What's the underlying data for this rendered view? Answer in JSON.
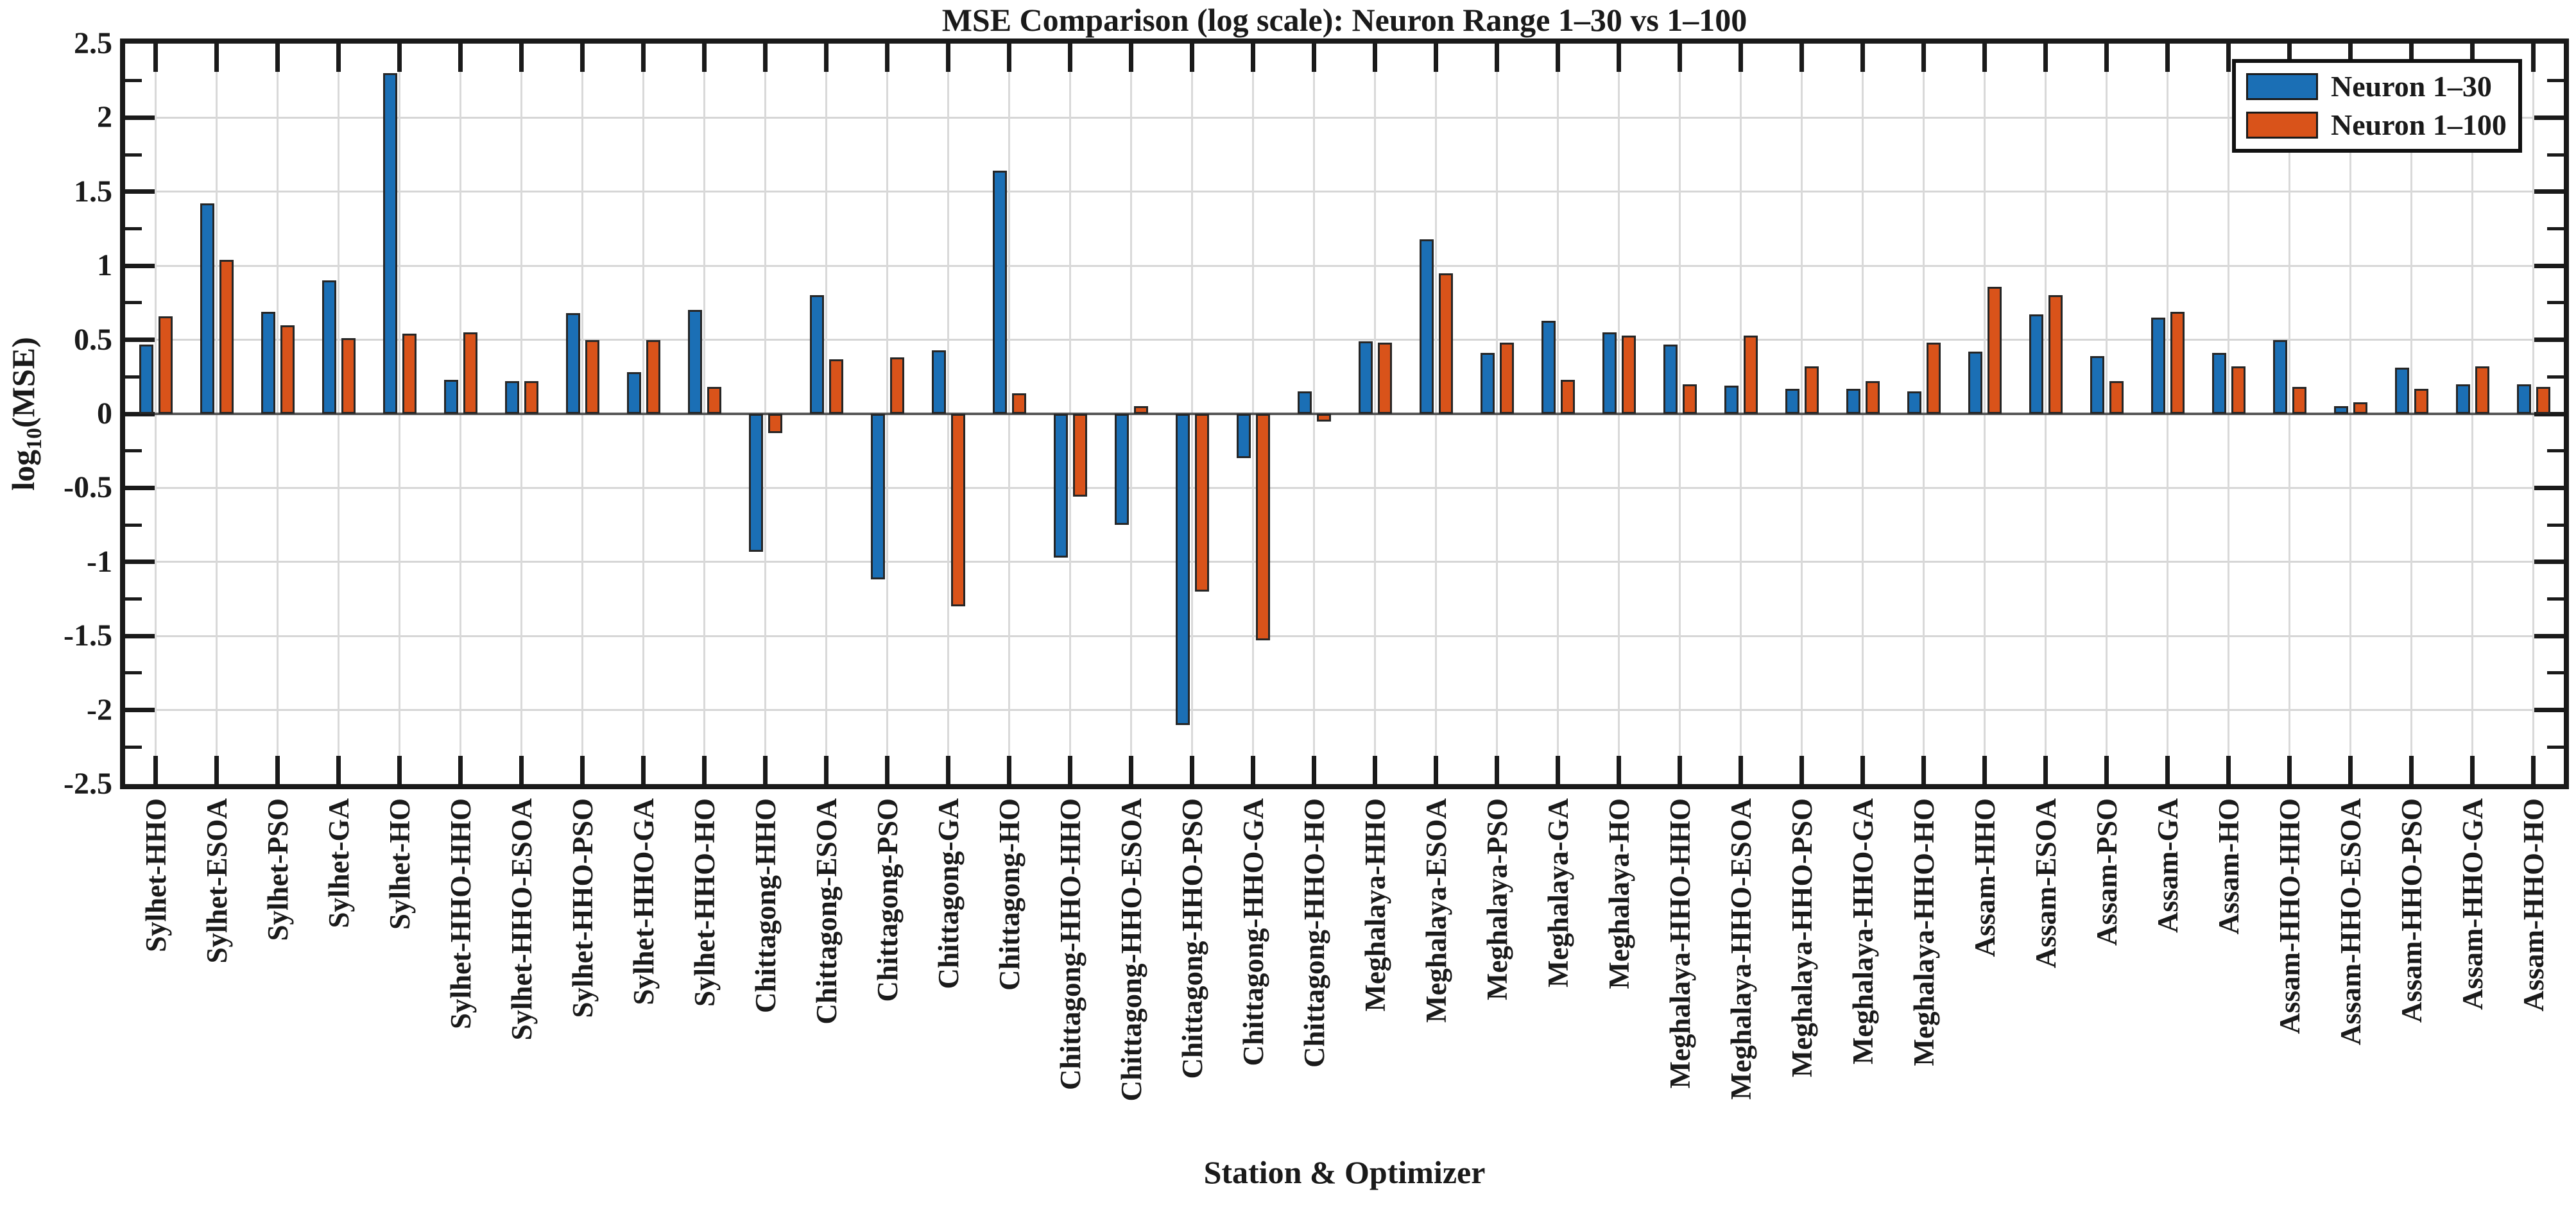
{
  "title": "MSE Comparison (log scale): Neuron Range 1–30 vs 1–100",
  "chart_data": {
    "type": "bar",
    "title": "MSE Comparison (log scale): Neuron Range 1–30 vs 1–100",
    "xlabel": "Station & Optimizer",
    "ylabel": "log10(MSE)",
    "ylabel_parts": {
      "pre": "log",
      "sub": "10",
      "post": "(MSE)"
    },
    "ylim": [
      -2.5,
      2.5
    ],
    "ytick_step": 0.5,
    "ytick_labels": [
      "2.5",
      "2",
      "1.5",
      "1",
      "0.5",
      "0",
      "-0.5",
      "-1",
      "-1.5",
      "-2",
      "-2.5"
    ],
    "grid": true,
    "legend_position": "top-right",
    "categories": [
      "Sylhet-HHO",
      "Sylhet-ESOA",
      "Sylhet-PSO",
      "Sylhet-GA",
      "Sylhet-HO",
      "Sylhet-HHO-HHO",
      "Sylhet-HHO-ESOA",
      "Sylhet-HHO-PSO",
      "Sylhet-HHO-GA",
      "Sylhet-HHO-HO",
      "Chittagong-HHO",
      "Chittagong-ESOA",
      "Chittagong-PSO",
      "Chittagong-GA",
      "Chittagong-HO",
      "Chittagong-HHO-HHO",
      "Chittagong-HHO-ESOA",
      "Chittagong-HHO-PSO",
      "Chittagong-HHO-GA",
      "Chittagong-HHO-HO",
      "Meghalaya-HHO",
      "Meghalaya-ESOA",
      "Meghalaya-PSO",
      "Meghalaya-GA",
      "Meghalaya-HO",
      "Meghalaya-HHO-HHO",
      "Meghalaya-HHO-ESOA",
      "Meghalaya-HHO-PSO",
      "Meghalaya-HHO-GA",
      "Meghalaya-HHO-HO",
      "Assam-HHO",
      "Assam-ESOA",
      "Assam-PSO",
      "Assam-GA",
      "Assam-HO",
      "Assam-HHO-HHO",
      "Assam-HHO-ESOA",
      "Assam-HHO-PSO",
      "Assam-HHO-GA",
      "Assam-HHO-HO"
    ],
    "series": [
      {
        "name": "Neuron 1–30",
        "color": "#1b6fb5",
        "values": [
          0.47,
          1.42,
          0.69,
          0.9,
          2.3,
          0.23,
          0.22,
          0.68,
          0.28,
          0.7,
          -0.93,
          0.8,
          -1.12,
          0.43,
          1.64,
          -0.97,
          -0.75,
          -2.1,
          -0.3,
          0.15,
          0.49,
          1.18,
          0.41,
          0.63,
          0.55,
          0.47,
          0.19,
          0.17,
          0.17,
          0.15,
          0.42,
          0.67,
          0.39,
          0.65,
          0.41,
          0.5,
          0.05,
          0.31,
          0.2,
          0.2
        ]
      },
      {
        "name": "Neuron 1–100",
        "color": "#d9531a",
        "values": [
          0.66,
          1.04,
          0.6,
          0.51,
          0.54,
          0.55,
          0.22,
          0.5,
          0.5,
          0.18,
          -0.13,
          0.37,
          0.38,
          -1.3,
          0.14,
          -0.56,
          0.05,
          -1.2,
          -1.53,
          -0.05,
          0.48,
          0.95,
          0.48,
          0.23,
          0.53,
          0.2,
          0.53,
          0.32,
          0.22,
          0.48,
          0.86,
          0.8,
          0.22,
          0.69,
          0.32,
          0.18,
          0.08,
          0.17,
          0.32,
          0.18
        ]
      }
    ]
  },
  "colors": {
    "bar_blue": "#1b6fb5",
    "bar_orange": "#d9531a",
    "bar_edge": "#262626",
    "spine": "#1a1a1a",
    "gridline": "#d6d6d6",
    "zero_line": "#595959",
    "text": "#1a1a1a",
    "background": "#ffffff"
  }
}
